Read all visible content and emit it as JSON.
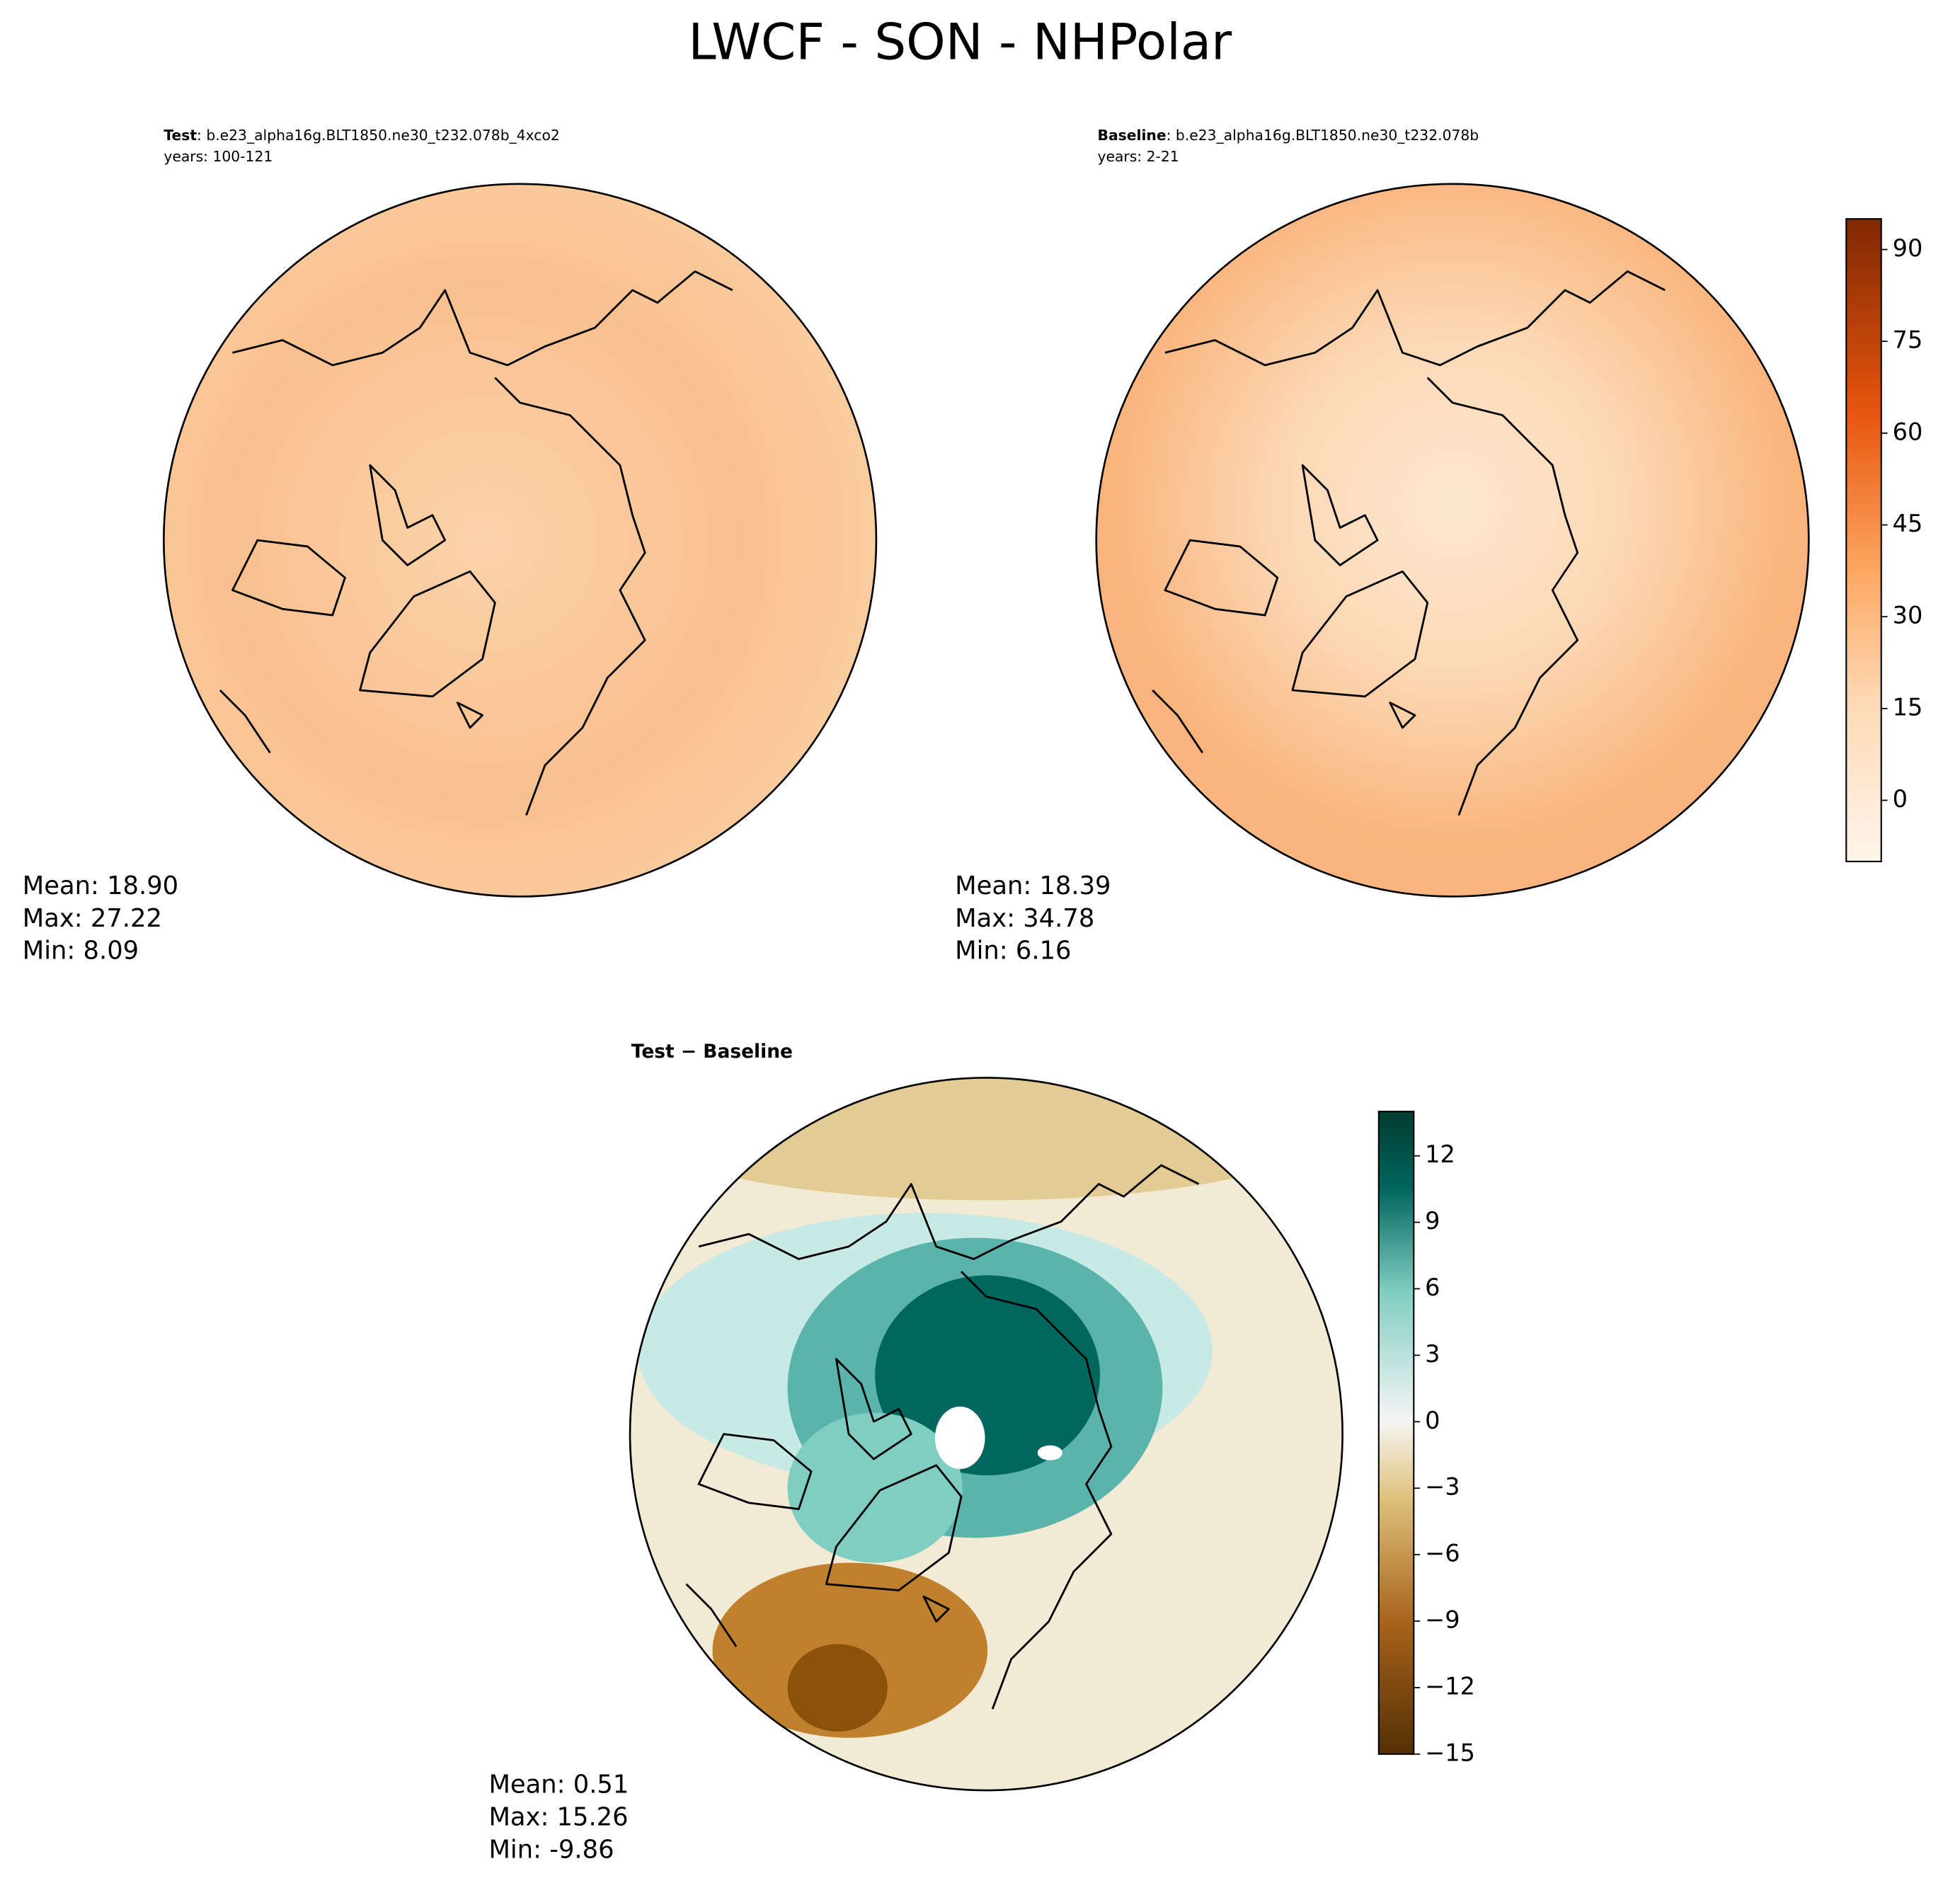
{
  "title": "LWCF - SON - NHPolar",
  "panels": [
    {
      "label_bold": "Test",
      "label_rest": ": b.e23_alpha16g.BLT1850.ne30_t232.078b_4xco2",
      "years": "years: 100-121",
      "stats": [
        "Mean: 18.90",
        "Max: 27.22",
        "Min:  8.09"
      ]
    },
    {
      "label_bold": "Baseline",
      "label_rest": ": b.e23_alpha16g.BLT1850.ne30_t232.078b",
      "years": "years: 2-21",
      "stats": [
        "Mean: 18.39",
        "Max: 34.78",
        "Min:  6.16"
      ]
    },
    {
      "label_bold": "Test − Baseline",
      "stats": [
        "Mean:  0.51",
        "Max: 15.26",
        "Min: -9.86"
      ]
    }
  ],
  "colorbars": [
    {
      "lim": [
        -10,
        95
      ],
      "ticks": [
        0,
        15,
        30,
        45,
        60,
        75,
        90
      ]
    },
    {
      "lim": [
        -15,
        14
      ],
      "ticks": [
        {
          "value": -15,
          "label": "−15"
        },
        {
          "value": -12,
          "label": "−12"
        },
        {
          "value": -9,
          "label": "−9"
        },
        {
          "value": -6,
          "label": "−6"
        },
        {
          "value": -3,
          "label": "−3"
        },
        0,
        3,
        6,
        9,
        12
      ]
    }
  ]
}
